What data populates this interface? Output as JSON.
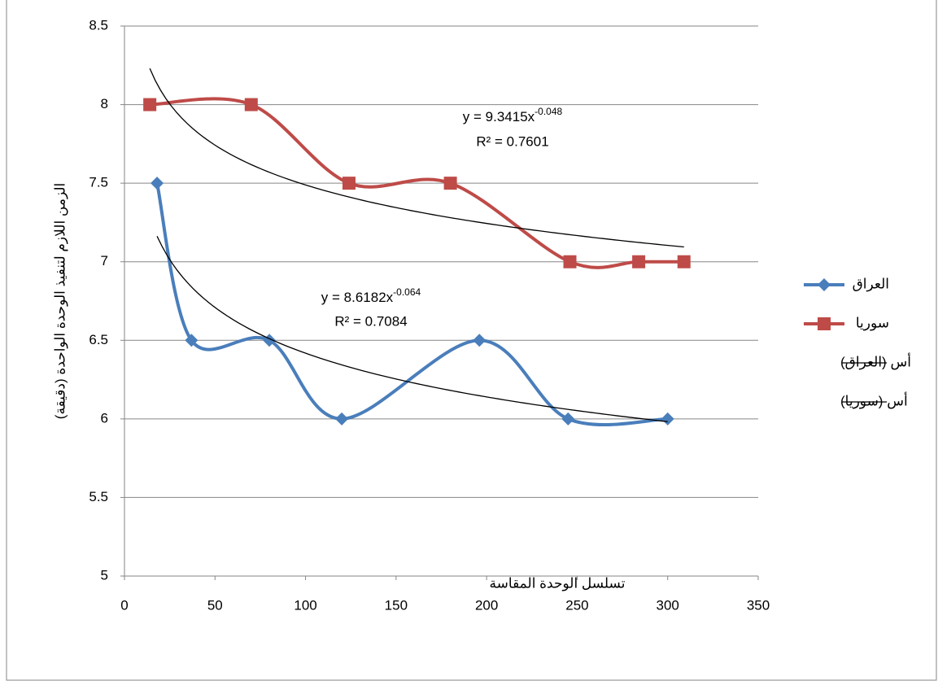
{
  "chart_data": {
    "type": "scatter",
    "x_label": "تسلسل الوحدة المقاسة",
    "y_label": "الزمن اللازم لتنفيذ الوحدة الواحدة (دقيقة)",
    "xlim": [
      0,
      350
    ],
    "xticks": [
      0,
      50,
      100,
      150,
      200,
      250,
      300,
      350
    ],
    "ylim": [
      5,
      8.5
    ],
    "yticks": [
      5,
      5.5,
      6,
      6.5,
      7,
      7.5,
      8,
      8.5
    ],
    "grid": true,
    "legend": "right",
    "series": [
      {
        "name": "العراق",
        "color": "#4a7ebb",
        "marker": "diamond",
        "smooth": true,
        "x": [
          18,
          37,
          80,
          120,
          196,
          245,
          300
        ],
        "values": [
          7.5,
          6.5,
          6.5,
          6,
          6.5,
          6,
          6
        ],
        "trendline": {
          "name": "أس (العراق)",
          "type": "power",
          "color": "#000000",
          "a": 8.6182,
          "b": -0.064,
          "r2": 0.7084,
          "equation": "y = 8.6182x",
          "exponent": "-0.064",
          "r2_label": "R² = 0.7084"
        }
      },
      {
        "name": "سوريا",
        "color": "#be4b48",
        "marker": "square",
        "smooth": true,
        "x": [
          14,
          70,
          124,
          180,
          246,
          284,
          309
        ],
        "values": [
          8,
          8,
          7.5,
          7.5,
          7,
          7,
          7
        ],
        "trendline": {
          "name": "أس (سوريا)",
          "type": "power",
          "color": "#000000",
          "a": 9.3415,
          "b": -0.048,
          "r2": 0.7601,
          "equation": "y = 9.3415x",
          "exponent": "-0.048",
          "r2_label": "R² = 0.7601"
        }
      }
    ]
  }
}
